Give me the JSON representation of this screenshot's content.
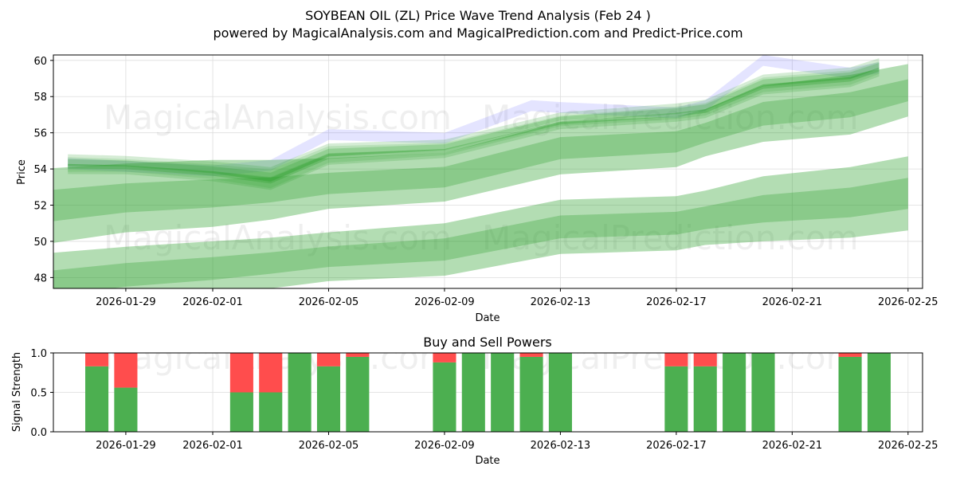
{
  "title": "SOYBEAN OIL (ZL) Price Wave Trend Analysis (Feb 24 )",
  "subtitle": "powered by MagicalAnalysis.com and MagicalPrediction.com and Predict-Price.com",
  "watermarks": [
    "MagicalAnalysis.com",
    "MagicalPrediction.com"
  ],
  "colors": {
    "band": "#2ca02c",
    "blue": "#6a6aff",
    "buy": "#4caf50",
    "sell": "#ff4d4d",
    "grid": "#dddddd"
  },
  "chart_data": [
    {
      "type": "area",
      "title": "",
      "xlabel": "Date",
      "ylabel": "Price",
      "xlim": [
        "2026-01-26T12:00",
        "2026-02-25T12:00"
      ],
      "ylim": [
        47.4,
        60.3
      ],
      "x_ticks": [
        "2026-01-29",
        "2026-02-01",
        "2026-02-05",
        "2026-02-09",
        "2026-02-13",
        "2026-02-17",
        "2026-02-21",
        "2026-02-25"
      ],
      "y_ticks": [
        48,
        50,
        52,
        54,
        56,
        58,
        60
      ],
      "grid": true,
      "series": [
        {
          "name": "upper wave band",
          "x": [
            "2026-01-27",
            "2026-01-29",
            "2026-02-01",
            "2026-02-03",
            "2026-02-05",
            "2026-02-09",
            "2026-02-13",
            "2026-02-17",
            "2026-02-18",
            "2026-02-20",
            "2026-02-23",
            "2026-02-24"
          ],
          "upper": [
            54.6,
            54.5,
            54.2,
            53.9,
            55.2,
            55.4,
            56.9,
            57.4,
            57.6,
            59.0,
            59.4,
            59.9
          ],
          "lower": [
            53.9,
            53.9,
            53.5,
            53.0,
            54.4,
            54.8,
            56.4,
            56.8,
            57.0,
            58.3,
            58.7,
            59.3
          ]
        },
        {
          "name": "middle wave band",
          "x": [
            "2026-01-26",
            "2026-01-29",
            "2026-02-01",
            "2026-02-03",
            "2026-02-05",
            "2026-02-09",
            "2026-02-13",
            "2026-02-17",
            "2026-02-18",
            "2026-02-20",
            "2026-02-23",
            "2026-02-25"
          ],
          "upper": [
            54.0,
            54.3,
            54.5,
            54.5,
            54.6,
            54.9,
            56.6,
            56.9,
            57.3,
            58.6,
            59.2,
            59.8
          ],
          "lower": [
            49.8,
            50.5,
            50.8,
            51.2,
            51.8,
            52.2,
            53.7,
            54.1,
            54.7,
            55.5,
            55.9,
            56.9
          ]
        },
        {
          "name": "lower wave band",
          "x": [
            "2026-01-26",
            "2026-01-29",
            "2026-02-01",
            "2026-02-03",
            "2026-02-05",
            "2026-02-09",
            "2026-02-13",
            "2026-02-17",
            "2026-02-18",
            "2026-02-20",
            "2026-02-23",
            "2026-02-25"
          ],
          "upper": [
            49.3,
            49.7,
            50.0,
            50.2,
            50.5,
            51.0,
            52.3,
            52.5,
            52.8,
            53.6,
            54.1,
            54.7
          ],
          "lower": [
            45.9,
            46.6,
            47.0,
            47.4,
            47.8,
            48.1,
            49.3,
            49.5,
            49.8,
            50.0,
            50.2,
            50.6
          ]
        },
        {
          "name": "blue projection",
          "x": [
            "2026-01-27",
            "2026-02-01",
            "2026-02-03",
            "2026-02-05",
            "2026-02-09",
            "2026-02-12",
            "2026-02-13",
            "2026-02-17",
            "2026-02-18",
            "2026-02-20",
            "2026-02-23",
            "2026-02-24"
          ],
          "values": [
            54.6,
            54.2,
            54.5,
            56.2,
            56.0,
            57.8,
            57.7,
            57.4,
            57.8,
            60.3,
            59.6,
            59.9
          ]
        }
      ]
    },
    {
      "type": "bar",
      "title": "Buy and Sell Powers",
      "xlabel": "Date",
      "ylabel": "Signal Strength",
      "xlim": [
        "2026-01-26T12:00",
        "2026-02-25T12:00"
      ],
      "ylim": [
        0.0,
        1.0
      ],
      "x_ticks": [
        "2026-01-29",
        "2026-02-01",
        "2026-02-05",
        "2026-02-09",
        "2026-02-13",
        "2026-02-17",
        "2026-02-21",
        "2026-02-25"
      ],
      "y_ticks": [
        "0.0",
        "0.5",
        "1.0"
      ],
      "grid": true,
      "dates": [
        "2026-01-28",
        "2026-01-29",
        "2026-02-02",
        "2026-02-03",
        "2026-02-04",
        "2026-02-05",
        "2026-02-06",
        "2026-02-09",
        "2026-02-10",
        "2026-02-11",
        "2026-02-12",
        "2026-02-13",
        "2026-02-17",
        "2026-02-18",
        "2026-02-19",
        "2026-02-20",
        "2026-02-23",
        "2026-02-24"
      ],
      "series": [
        {
          "name": "Buy",
          "values": [
            0.83,
            0.56,
            0.5,
            0.5,
            1.0,
            0.83,
            0.95,
            0.88,
            1.0,
            1.0,
            0.95,
            1.0,
            0.83,
            0.83,
            1.0,
            1.0,
            0.95,
            1.0
          ]
        },
        {
          "name": "Sell",
          "values": [
            0.17,
            0.44,
            0.5,
            0.5,
            0.0,
            0.17,
            0.05,
            0.12,
            0.0,
            0.0,
            0.05,
            0.0,
            0.17,
            0.17,
            0.0,
            0.0,
            0.05,
            0.0
          ]
        }
      ]
    }
  ]
}
